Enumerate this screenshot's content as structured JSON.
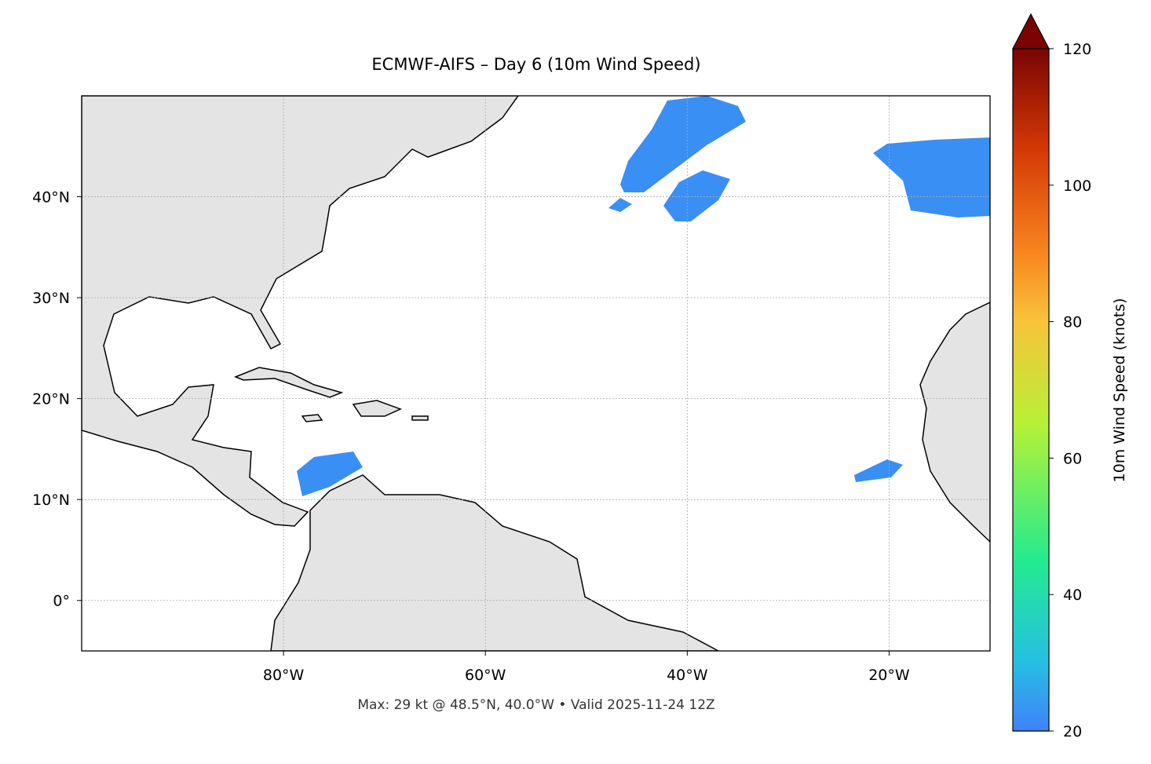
{
  "chart_data": {
    "type": "map",
    "title": "ECMWF-AIFS – Day 6 (10m Wind Speed)",
    "footer": "Max: 29 kt @ 48.5°N, 40.0°W • Valid 2025-11-24 12Z",
    "xlim": [
      -100,
      -10
    ],
    "ylim": [
      -5,
      50
    ],
    "xticks": [
      {
        "value": -80,
        "label": "80°W"
      },
      {
        "value": -60,
        "label": "60°W"
      },
      {
        "value": -40,
        "label": "40°W"
      },
      {
        "value": -20,
        "label": "20°W"
      }
    ],
    "yticks": [
      {
        "value": 0,
        "label": "0°"
      },
      {
        "value": 10,
        "label": "10°N"
      },
      {
        "value": 20,
        "label": "20°N"
      },
      {
        "value": 30,
        "label": "30°N"
      },
      {
        "value": 40,
        "label": "40°N"
      }
    ],
    "grid": true,
    "colorbar": {
      "label": "10m Wind Speed (knots)",
      "clim": [
        20,
        120
      ],
      "ticks": [
        20,
        40,
        60,
        80,
        100,
        120
      ]
    }
  }
}
